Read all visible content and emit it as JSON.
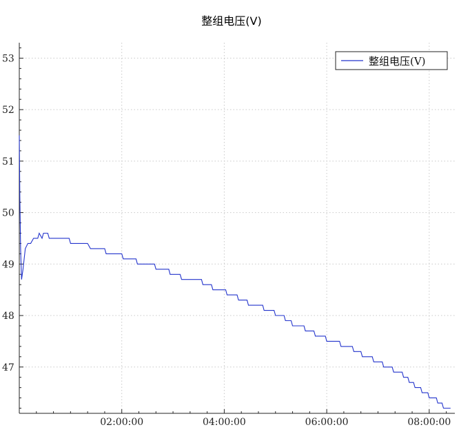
{
  "chart_data": {
    "type": "line",
    "title": "整组电压(V)",
    "xlabel": "",
    "ylabel": "",
    "xlim": [
      0,
      30600
    ],
    "ylim": [
      46.1,
      53.3
    ],
    "grid": true,
    "legend_position": "top-right",
    "x_ticks": [
      {
        "value": 7200,
        "label": "02:00:00"
      },
      {
        "value": 14400,
        "label": "04:00:00"
      },
      {
        "value": 21600,
        "label": "06:00:00"
      },
      {
        "value": 28800,
        "label": "08:00:00"
      }
    ],
    "y_ticks": [
      {
        "value": 47,
        "label": "47"
      },
      {
        "value": 48,
        "label": "48"
      },
      {
        "value": 49,
        "label": "49"
      },
      {
        "value": 50,
        "label": "50"
      },
      {
        "value": 51,
        "label": "51"
      },
      {
        "value": 52,
        "label": "52"
      },
      {
        "value": 53,
        "label": "53"
      }
    ],
    "series": [
      {
        "name": "整组电压(V)",
        "color": "#2233cc",
        "points": [
          [
            0,
            51.5
          ],
          [
            40,
            50.3
          ],
          [
            90,
            49.3
          ],
          [
            160,
            48.7
          ],
          [
            260,
            48.9
          ],
          [
            420,
            49.3
          ],
          [
            600,
            49.4
          ],
          [
            800,
            49.4
          ],
          [
            1000,
            49.5
          ],
          [
            1300,
            49.5
          ],
          [
            1400,
            49.6
          ],
          [
            1600,
            49.5
          ],
          [
            1700,
            49.6
          ],
          [
            2000,
            49.6
          ],
          [
            2100,
            49.5
          ],
          [
            3000,
            49.5
          ],
          [
            3500,
            49.5
          ],
          [
            3600,
            49.4
          ],
          [
            4800,
            49.4
          ],
          [
            5000,
            49.3
          ],
          [
            6000,
            49.3
          ],
          [
            6100,
            49.2
          ],
          [
            7200,
            49.2
          ],
          [
            7300,
            49.1
          ],
          [
            8200,
            49.1
          ],
          [
            8300,
            49.0
          ],
          [
            9500,
            49.0
          ],
          [
            9600,
            48.9
          ],
          [
            10500,
            48.9
          ],
          [
            10600,
            48.8
          ],
          [
            11300,
            48.8
          ],
          [
            11400,
            48.7
          ],
          [
            12800,
            48.7
          ],
          [
            12900,
            48.6
          ],
          [
            13500,
            48.6
          ],
          [
            13600,
            48.5
          ],
          [
            14500,
            48.5
          ],
          [
            14600,
            48.4
          ],
          [
            15300,
            48.4
          ],
          [
            15400,
            48.3
          ],
          [
            16000,
            48.3
          ],
          [
            16100,
            48.2
          ],
          [
            17100,
            48.2
          ],
          [
            17200,
            48.1
          ],
          [
            17900,
            48.1
          ],
          [
            18000,
            48.0
          ],
          [
            18600,
            48.0
          ],
          [
            18700,
            47.9
          ],
          [
            19100,
            47.9
          ],
          [
            19200,
            47.8
          ],
          [
            20000,
            47.8
          ],
          [
            20100,
            47.7
          ],
          [
            20700,
            47.7
          ],
          [
            20800,
            47.6
          ],
          [
            21500,
            47.6
          ],
          [
            21600,
            47.5
          ],
          [
            22500,
            47.5
          ],
          [
            22600,
            47.4
          ],
          [
            23400,
            47.4
          ],
          [
            23500,
            47.3
          ],
          [
            24000,
            47.3
          ],
          [
            24100,
            47.2
          ],
          [
            24800,
            47.2
          ],
          [
            24900,
            47.1
          ],
          [
            25500,
            47.1
          ],
          [
            25600,
            47.0
          ],
          [
            26200,
            47.0
          ],
          [
            26300,
            46.9
          ],
          [
            26900,
            46.9
          ],
          [
            27000,
            46.8
          ],
          [
            27300,
            46.8
          ],
          [
            27400,
            46.7
          ],
          [
            27700,
            46.7
          ],
          [
            27800,
            46.6
          ],
          [
            28200,
            46.6
          ],
          [
            28300,
            46.5
          ],
          [
            28700,
            46.5
          ],
          [
            28800,
            46.4
          ],
          [
            29300,
            46.4
          ],
          [
            29400,
            46.3
          ],
          [
            29700,
            46.3
          ],
          [
            29800,
            46.2
          ],
          [
            30300,
            46.2
          ]
        ]
      }
    ]
  }
}
